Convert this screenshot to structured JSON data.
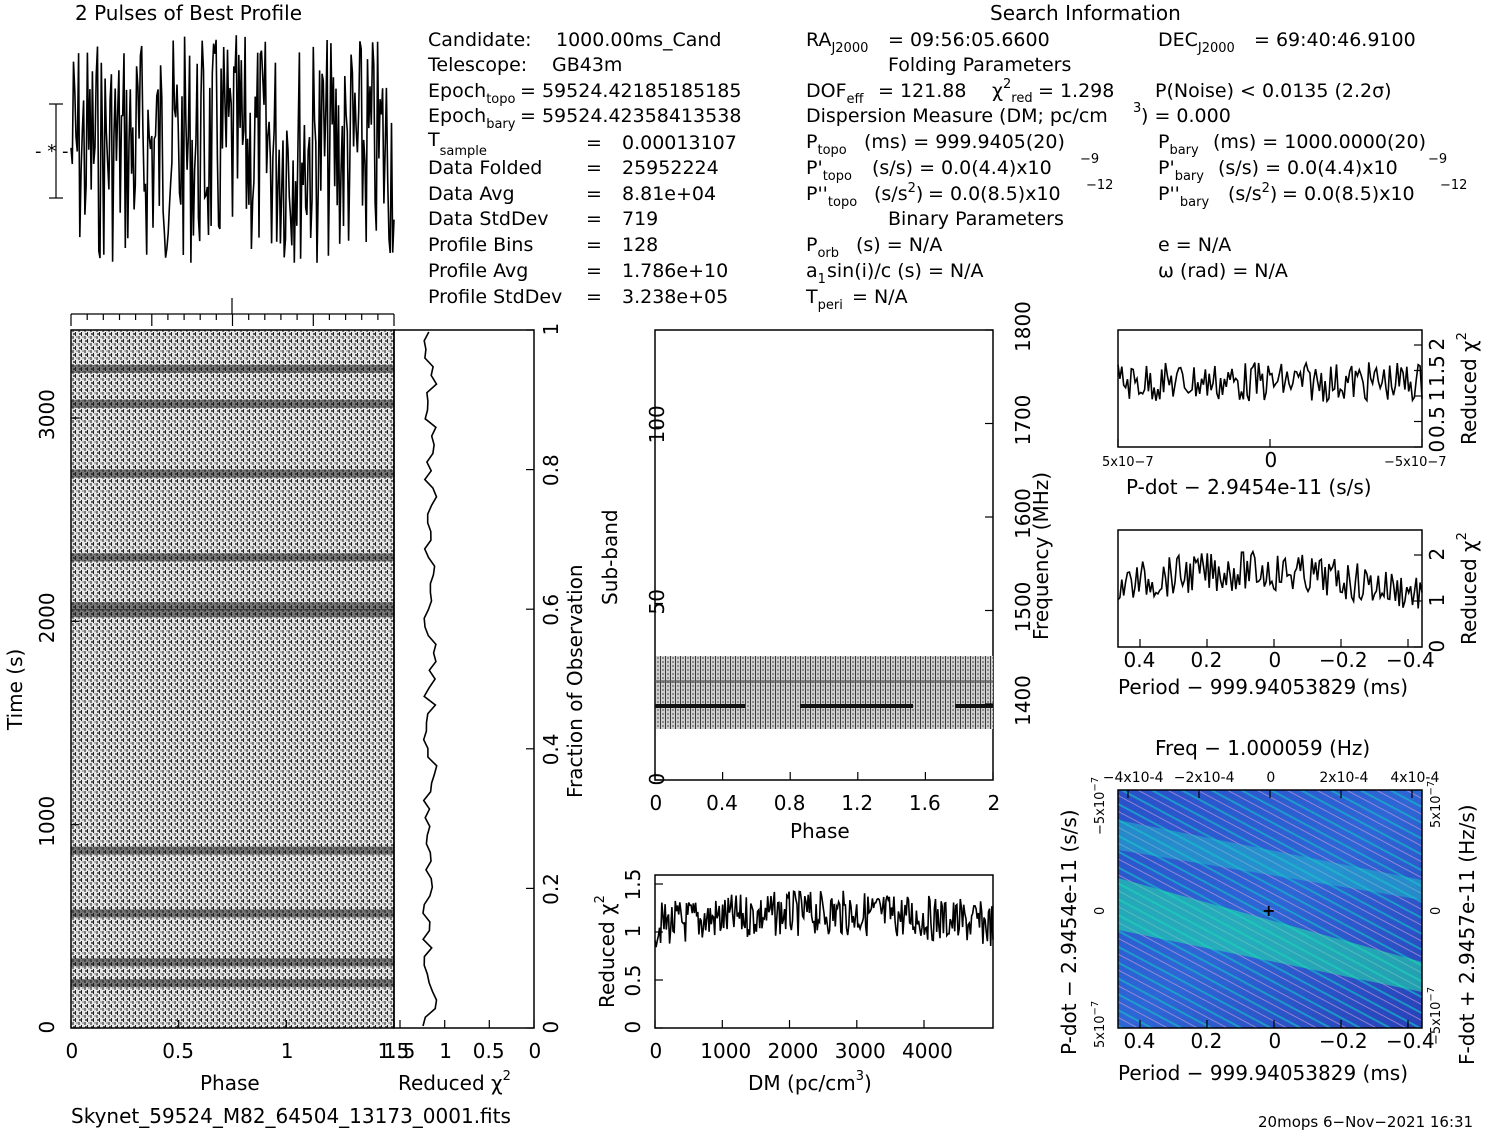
{
  "chart_data": [
    {
      "type": "line",
      "title": "2 Pulses of Best Profile",
      "xlabel": "",
      "ylabel": "",
      "xlim": [
        0,
        2
      ],
      "profile_bins": 128
    },
    {
      "type": "heatmap",
      "name": "time-phase",
      "xlabel": "Phase",
      "ylabel": "Time (s)",
      "xlim": [
        0,
        1.5
      ],
      "ylim": [
        0,
        3300
      ],
      "x_ticks": [
        "0",
        "0.5",
        "1",
        "1.5"
      ],
      "y_ticks": [
        "0",
        "1000",
        "2000",
        "3000"
      ],
      "right_axis_label": "Fraction of Observation",
      "right_ticks": [
        "0",
        "0.2",
        "0.4",
        "0.6",
        "0.8",
        "1"
      ],
      "dark_rows_fraction": [
        0.07,
        0.1,
        0.17,
        0.26,
        0.6,
        0.61,
        0.68,
        0.8,
        0.9,
        0.95
      ]
    },
    {
      "type": "line",
      "name": "time-chi2",
      "xlabel": "Reduced χ2",
      "x_ticks": [
        "1.5",
        "1",
        "0.5",
        "0"
      ],
      "xlim": [
        1.5,
        0
      ]
    },
    {
      "type": "heatmap",
      "name": "subband-phase",
      "xlabel": "Phase",
      "ylabel": "Sub-band",
      "xlim": [
        0,
        2
      ],
      "ylim": [
        0,
        128
      ],
      "x_ticks": [
        "0",
        "0.4",
        "0.8",
        "1.2",
        "1.6",
        "2"
      ],
      "y_ticks": [
        "0",
        "50",
        "100"
      ],
      "right_axis_label": "Frequency (MHz)",
      "right_ticks": [
        "1400",
        "1500",
        "1600",
        "1700",
        "1800"
      ],
      "band_subbands": [
        14,
        35
      ]
    },
    {
      "type": "line",
      "name": "dm-chi2",
      "xlabel": "DM (pc/cm3)",
      "ylabel": "Reduced χ2",
      "xlim": [
        0,
        4900
      ],
      "ylim": [
        0,
        1.6
      ],
      "x_ticks": [
        "0",
        "1000",
        "2000",
        "3000",
        "4000"
      ],
      "y_ticks": [
        "0",
        "0.5",
        "1",
        "1.5"
      ]
    },
    {
      "type": "line",
      "name": "pdot-chi2",
      "xlabel": "P-dot − 2.9454e-11 (s/s)",
      "ylabel": "Reduced χ2",
      "x_ticks": [
        "5x10-7",
        "0",
        "−5x10-7"
      ],
      "y_ticks": [
        "0",
        "0.5",
        "1",
        "1.5",
        "2"
      ]
    },
    {
      "type": "line",
      "name": "period-chi2",
      "xlabel": "Period − 999.94053829 (ms)",
      "ylabel": "Reduced χ2",
      "xlim": [
        0.45,
        -0.45
      ],
      "x_ticks": [
        "0.4",
        "0.2",
        "0",
        "−0.2",
        "−0.4"
      ],
      "y_ticks": [
        "0",
        "1",
        "2"
      ]
    },
    {
      "type": "heatmap",
      "name": "period-pdot",
      "title": "Freq − 1.000059 (Hz)",
      "xlabel": "Period − 999.94053829 (ms)",
      "ylabel": "P-dot − 2.9454e-11 (s/s)",
      "right_axis_label": "F-dot + 2.9457e-11 (Hz/s)",
      "x_ticks": [
        "0.4",
        "0.2",
        "0",
        "−0.2",
        "−0.4"
      ],
      "top_ticks": [
        "−4x10-4",
        "−2x10-4",
        "0",
        "2x10-4",
        "4x10-4"
      ],
      "y_ticks": [
        "5x10-7",
        "0",
        "−5x10-7"
      ],
      "right_ticks": [
        "5x10-7",
        "0",
        "−5x10-7"
      ]
    }
  ],
  "text": {
    "profile_title": "2 Pulses of Best Profile",
    "search_title": "Search Information",
    "candidate_lbl": "Candidate:",
    "candidate_val": "1000.00ms_Cand",
    "telescope_lbl": "Telescope:",
    "telescope_val": "GB43m",
    "epoch_topo": "= 59524.42185185185",
    "epoch_bary": "= 59524.42358413538",
    "tsample": "0.00013107",
    "data_folded": "25952224",
    "data_avg": "8.81e+04",
    "data_stddev": "719",
    "profile_bins": "128",
    "profile_avg": "1.786e+10",
    "profile_stddev": "3.238e+05",
    "ra": "= 09:56:05.6600",
    "dec": "= 69:40:46.9100",
    "folding_params": "Folding Parameters",
    "dof": "= 121.88",
    "chi2red": "= 1.298",
    "pnoise": "P(Noise) < 0.0135   (2.2σ)",
    "dm_line": "Dispersion Measure (DM; pc/cm",
    "dm_value": ") = 0.000",
    "ptopo": "(ms)  =   999.9405(20)",
    "pbary": "(ms)  =   1000.0000(20)",
    "pdtopo": "(s/s) = 0.0(4.4)x10",
    "pdbary": "(s/s) = 0.0(4.4)x10",
    "pddtopo": "= 0.0(8.5)x10",
    "pddbary": "= 0.0(8.5)x10",
    "binary_params": "Binary Parameters",
    "porb": "(s) = N/A",
    "asini": "sin(i)/c (s) = N/A",
    "tperi": "= N/A",
    "ecc": "e = N/A",
    "omega": "ω (rad) = N/A",
    "filename": "Skynet_59524_M82_64504_13173_0001.fits",
    "footer_right": "20mops  6−Nov−2021 16:31"
  }
}
